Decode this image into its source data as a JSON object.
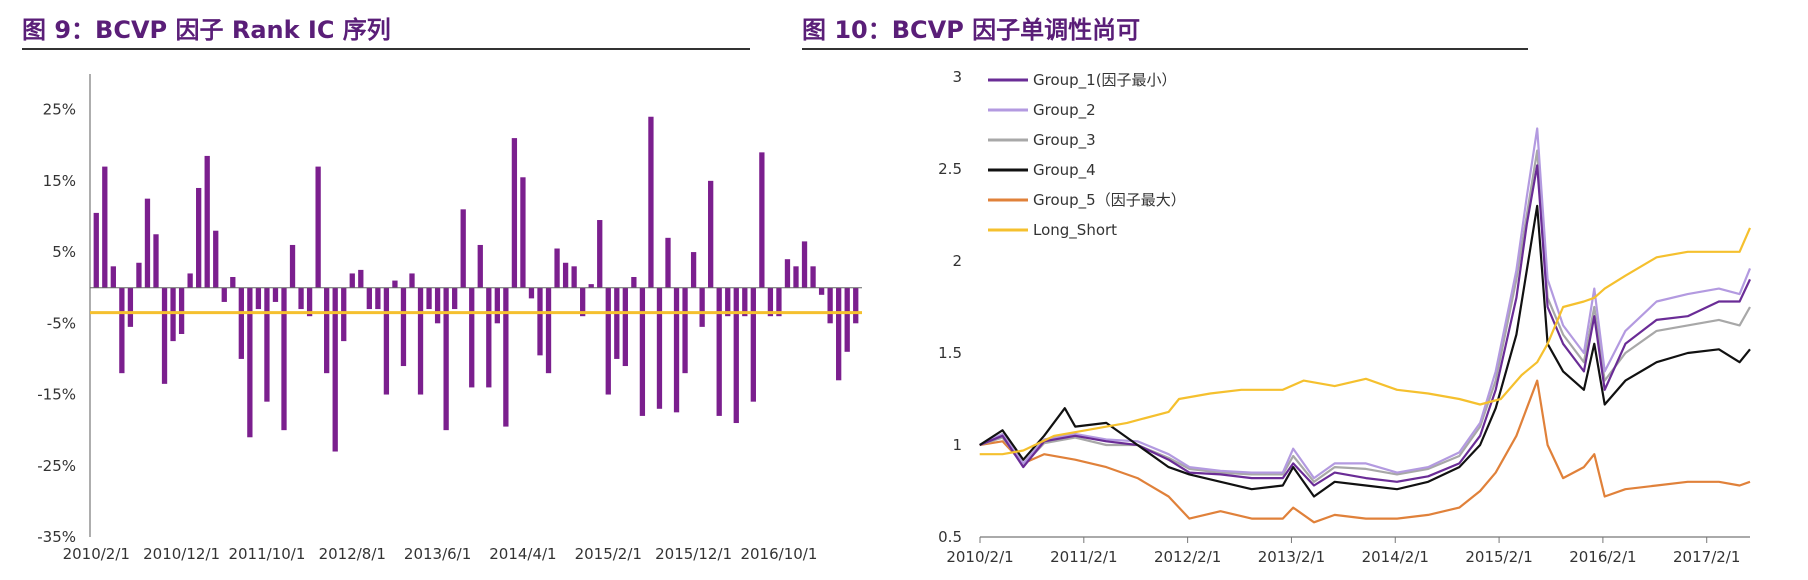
{
  "titles": {
    "left": "图 9：BCVP 因子 Rank IC 序列",
    "right": "图 10：BCVP 因子单调性尚可"
  },
  "chart_data": [
    {
      "type": "bar",
      "title": "图 9：BCVP 因子 Rank IC 序列",
      "ylim": [
        -35,
        30
      ],
      "yticks": [
        "25%",
        "15%",
        "5%",
        "-5%",
        "-15%",
        "-25%",
        "-35%"
      ],
      "ytick_values": [
        25,
        15,
        5,
        -5,
        -15,
        -25,
        -35
      ],
      "x_tick_labels": [
        "2010/2/1",
        "2010/12/1",
        "2011/10/1",
        "2012/8/1",
        "2013/6/1",
        "2014/4/1",
        "2015/2/1",
        "2015/12/1",
        "2016/10/1"
      ],
      "x_tick_indices": [
        0,
        10,
        20,
        30,
        40,
        50,
        60,
        70,
        80
      ],
      "mean_line": -3.5,
      "bar_color": "#7b1f8e",
      "mean_color": "#f5c02e",
      "values": [
        10.5,
        17,
        3,
        -12,
        -5.5,
        3.5,
        12.5,
        7.5,
        -13.5,
        -7.5,
        -6.5,
        2,
        14,
        18.5,
        8,
        -2,
        1.5,
        -10,
        -21,
        -3,
        -16,
        -2,
        -20,
        6,
        -3,
        -4,
        17,
        -12,
        -23,
        -7.5,
        2,
        2.5,
        -3,
        -3,
        -15,
        1,
        -11,
        2,
        -15,
        -3,
        -5,
        -20,
        -3,
        11,
        -14,
        6,
        -14,
        -5,
        -19.5,
        21,
        15.5,
        -1.5,
        -9.5,
        -12,
        5.5,
        3.5,
        3,
        -4,
        0.5,
        9.5,
        -15,
        -10,
        -11,
        1.5,
        -18,
        24,
        -17,
        7,
        -17.5,
        -12,
        5,
        -5.5,
        15,
        -18,
        -4,
        -19,
        -4,
        -16,
        19,
        -4,
        -4,
        4,
        3,
        6.5,
        3,
        -1,
        -5,
        -13,
        -9,
        -5
      ]
    },
    {
      "type": "line",
      "title": "图 10：BCVP 因子单调性尚可",
      "ylim": [
        0.5,
        3
      ],
      "yticks": [
        "3",
        "2.5",
        "2",
        "1.5",
        "1",
        "0.5"
      ],
      "ytick_values": [
        3,
        2.5,
        2,
        1.5,
        1,
        0.5
      ],
      "x_tick_labels": [
        "2010/2/1",
        "2011/2/1",
        "2012/2/1",
        "2013/2/1",
        "2014/2/1",
        "2015/2/1",
        "2016/2/1",
        "2017/2/1"
      ],
      "x_tick_values": [
        2010.083,
        2011.083,
        2012.083,
        2013.083,
        2014.083,
        2015.083,
        2016.083,
        2017.083
      ],
      "xlim": [
        2010.083,
        2017.5
      ],
      "series": [
        {
          "name": "Group_1(因子最小）",
          "color": "#6a2c96",
          "points": [
            [
              2010.08,
              1.0
            ],
            [
              2010.3,
              1.05
            ],
            [
              2010.5,
              0.88
            ],
            [
              2010.7,
              1.02
            ],
            [
              2011.0,
              1.05
            ],
            [
              2011.3,
              1.02
            ],
            [
              2011.6,
              1.0
            ],
            [
              2011.9,
              0.92
            ],
            [
              2012.1,
              0.85
            ],
            [
              2012.4,
              0.84
            ],
            [
              2012.7,
              0.82
            ],
            [
              2013.0,
              0.82
            ],
            [
              2013.1,
              0.9
            ],
            [
              2013.3,
              0.78
            ],
            [
              2013.5,
              0.85
            ],
            [
              2013.8,
              0.82
            ],
            [
              2014.1,
              0.8
            ],
            [
              2014.4,
              0.83
            ],
            [
              2014.7,
              0.9
            ],
            [
              2014.9,
              1.05
            ],
            [
              2015.05,
              1.3
            ],
            [
              2015.25,
              1.8
            ],
            [
              2015.35,
              2.2
            ],
            [
              2015.45,
              2.52
            ],
            [
              2015.55,
              1.75
            ],
            [
              2015.7,
              1.55
            ],
            [
              2015.9,
              1.4
            ],
            [
              2016.0,
              1.7
            ],
            [
              2016.1,
              1.3
            ],
            [
              2016.3,
              1.55
            ],
            [
              2016.6,
              1.68
            ],
            [
              2016.9,
              1.7
            ],
            [
              2017.2,
              1.78
            ],
            [
              2017.4,
              1.78
            ],
            [
              2017.5,
              1.9
            ]
          ]
        },
        {
          "name": "Group_2",
          "color": "#b39ae0",
          "points": [
            [
              2010.08,
              1.0
            ],
            [
              2010.3,
              1.06
            ],
            [
              2010.5,
              0.9
            ],
            [
              2010.7,
              1.03
            ],
            [
              2011.0,
              1.06
            ],
            [
              2011.3,
              1.03
            ],
            [
              2011.6,
              1.02
            ],
            [
              2011.9,
              0.95
            ],
            [
              2012.1,
              0.88
            ],
            [
              2012.4,
              0.86
            ],
            [
              2012.7,
              0.85
            ],
            [
              2013.0,
              0.85
            ],
            [
              2013.1,
              0.98
            ],
            [
              2013.3,
              0.82
            ],
            [
              2013.5,
              0.9
            ],
            [
              2013.8,
              0.9
            ],
            [
              2014.1,
              0.85
            ],
            [
              2014.4,
              0.88
            ],
            [
              2014.7,
              0.96
            ],
            [
              2014.9,
              1.12
            ],
            [
              2015.05,
              1.4
            ],
            [
              2015.25,
              1.95
            ],
            [
              2015.35,
              2.35
            ],
            [
              2015.45,
              2.72
            ],
            [
              2015.55,
              1.9
            ],
            [
              2015.7,
              1.65
            ],
            [
              2015.9,
              1.5
            ],
            [
              2016.0,
              1.85
            ],
            [
              2016.1,
              1.4
            ],
            [
              2016.3,
              1.62
            ],
            [
              2016.6,
              1.78
            ],
            [
              2016.9,
              1.82
            ],
            [
              2017.2,
              1.85
            ],
            [
              2017.4,
              1.82
            ],
            [
              2017.5,
              1.96
            ]
          ]
        },
        {
          "name": "Group_3",
          "color": "#a8a8a8",
          "points": [
            [
              2010.08,
              1.0
            ],
            [
              2010.3,
              1.04
            ],
            [
              2010.5,
              0.89
            ],
            [
              2010.7,
              1.01
            ],
            [
              2011.0,
              1.04
            ],
            [
              2011.3,
              1.0
            ],
            [
              2011.6,
              1.0
            ],
            [
              2011.9,
              0.93
            ],
            [
              2012.1,
              0.87
            ],
            [
              2012.4,
              0.85
            ],
            [
              2012.7,
              0.84
            ],
            [
              2013.0,
              0.84
            ],
            [
              2013.1,
              0.94
            ],
            [
              2013.3,
              0.8
            ],
            [
              2013.5,
              0.88
            ],
            [
              2013.8,
              0.87
            ],
            [
              2014.1,
              0.84
            ],
            [
              2014.4,
              0.87
            ],
            [
              2014.7,
              0.94
            ],
            [
              2014.9,
              1.1
            ],
            [
              2015.05,
              1.35
            ],
            [
              2015.25,
              1.9
            ],
            [
              2015.35,
              2.25
            ],
            [
              2015.45,
              2.6
            ],
            [
              2015.55,
              1.8
            ],
            [
              2015.7,
              1.6
            ],
            [
              2015.9,
              1.45
            ],
            [
              2016.0,
              1.75
            ],
            [
              2016.1,
              1.35
            ],
            [
              2016.3,
              1.5
            ],
            [
              2016.6,
              1.62
            ],
            [
              2016.9,
              1.65
            ],
            [
              2017.2,
              1.68
            ],
            [
              2017.4,
              1.65
            ],
            [
              2017.5,
              1.75
            ]
          ]
        },
        {
          "name": "Group_4",
          "color": "#111111",
          "points": [
            [
              2010.08,
              1.0
            ],
            [
              2010.3,
              1.08
            ],
            [
              2010.5,
              0.92
            ],
            [
              2010.7,
              1.05
            ],
            [
              2010.9,
              1.2
            ],
            [
              2011.0,
              1.1
            ],
            [
              2011.3,
              1.12
            ],
            [
              2011.6,
              1.0
            ],
            [
              2011.9,
              0.88
            ],
            [
              2012.1,
              0.84
            ],
            [
              2012.4,
              0.8
            ],
            [
              2012.7,
              0.76
            ],
            [
              2013.0,
              0.78
            ],
            [
              2013.1,
              0.88
            ],
            [
              2013.3,
              0.72
            ],
            [
              2013.5,
              0.8
            ],
            [
              2013.8,
              0.78
            ],
            [
              2014.1,
              0.76
            ],
            [
              2014.4,
              0.8
            ],
            [
              2014.7,
              0.88
            ],
            [
              2014.9,
              1.0
            ],
            [
              2015.05,
              1.2
            ],
            [
              2015.25,
              1.6
            ],
            [
              2015.35,
              1.95
            ],
            [
              2015.45,
              2.3
            ],
            [
              2015.55,
              1.55
            ],
            [
              2015.7,
              1.4
            ],
            [
              2015.9,
              1.3
            ],
            [
              2016.0,
              1.55
            ],
            [
              2016.1,
              1.22
            ],
            [
              2016.3,
              1.35
            ],
            [
              2016.6,
              1.45
            ],
            [
              2016.9,
              1.5
            ],
            [
              2017.2,
              1.52
            ],
            [
              2017.4,
              1.45
            ],
            [
              2017.5,
              1.52
            ]
          ]
        },
        {
          "name": "Group_5（因子最大）",
          "color": "#e0813a",
          "points": [
            [
              2010.08,
              1.0
            ],
            [
              2010.3,
              1.02
            ],
            [
              2010.5,
              0.9
            ],
            [
              2010.7,
              0.95
            ],
            [
              2011.0,
              0.92
            ],
            [
              2011.3,
              0.88
            ],
            [
              2011.6,
              0.82
            ],
            [
              2011.9,
              0.72
            ],
            [
              2012.1,
              0.6
            ],
            [
              2012.4,
              0.64
            ],
            [
              2012.7,
              0.6
            ],
            [
              2013.0,
              0.6
            ],
            [
              2013.1,
              0.66
            ],
            [
              2013.3,
              0.58
            ],
            [
              2013.5,
              0.62
            ],
            [
              2013.8,
              0.6
            ],
            [
              2014.1,
              0.6
            ],
            [
              2014.4,
              0.62
            ],
            [
              2014.7,
              0.66
            ],
            [
              2014.9,
              0.75
            ],
            [
              2015.05,
              0.85
            ],
            [
              2015.25,
              1.05
            ],
            [
              2015.35,
              1.2
            ],
            [
              2015.45,
              1.35
            ],
            [
              2015.55,
              1.0
            ],
            [
              2015.7,
              0.82
            ],
            [
              2015.9,
              0.88
            ],
            [
              2016.0,
              0.95
            ],
            [
              2016.1,
              0.72
            ],
            [
              2016.3,
              0.76
            ],
            [
              2016.6,
              0.78
            ],
            [
              2016.9,
              0.8
            ],
            [
              2017.2,
              0.8
            ],
            [
              2017.4,
              0.78
            ],
            [
              2017.5,
              0.8
            ]
          ]
        },
        {
          "name": "Long_Short",
          "color": "#f5c02e",
          "points": [
            [
              2010.08,
              0.95
            ],
            [
              2010.3,
              0.95
            ],
            [
              2010.5,
              0.97
            ],
            [
              2010.8,
              1.05
            ],
            [
              2011.1,
              1.08
            ],
            [
              2011.5,
              1.12
            ],
            [
              2011.9,
              1.18
            ],
            [
              2012.0,
              1.25
            ],
            [
              2012.3,
              1.28
            ],
            [
              2012.6,
              1.3
            ],
            [
              2013.0,
              1.3
            ],
            [
              2013.2,
              1.35
            ],
            [
              2013.5,
              1.32
            ],
            [
              2013.8,
              1.36
            ],
            [
              2014.1,
              1.3
            ],
            [
              2014.4,
              1.28
            ],
            [
              2014.7,
              1.25
            ],
            [
              2014.9,
              1.22
            ],
            [
              2015.1,
              1.25
            ],
            [
              2015.3,
              1.38
            ],
            [
              2015.45,
              1.45
            ],
            [
              2015.55,
              1.55
            ],
            [
              2015.7,
              1.75
            ],
            [
              2015.9,
              1.78
            ],
            [
              2016.0,
              1.8
            ],
            [
              2016.1,
              1.85
            ],
            [
              2016.3,
              1.92
            ],
            [
              2016.6,
              2.02
            ],
            [
              2016.9,
              2.05
            ],
            [
              2017.2,
              2.05
            ],
            [
              2017.4,
              2.05
            ],
            [
              2017.5,
              2.18
            ]
          ]
        }
      ]
    }
  ]
}
